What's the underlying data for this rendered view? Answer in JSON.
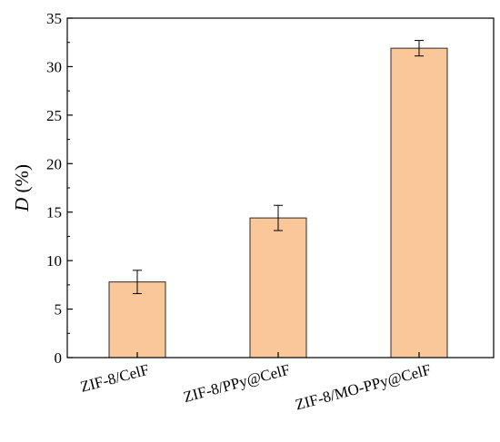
{
  "chart_data": {
    "type": "bar",
    "categories": [
      "ZIF-8/CelF",
      "ZIF-8/PPy@CelF",
      "ZIF-8/MO-PPy@CelF"
    ],
    "values": [
      7.8,
      14.4,
      31.9
    ],
    "errors": [
      1.2,
      1.3,
      0.8
    ],
    "title": "",
    "xlabel": "",
    "ylabel_italic": "D",
    "ylabel_rest": " (%)",
    "ylim": [
      0,
      35
    ],
    "yticks": [
      0,
      5,
      10,
      15,
      20,
      25,
      30,
      35
    ],
    "grid": false,
    "colors": {
      "bar_fill": "#FAC898",
      "bar_stroke": "#2b2b2b",
      "axis": "#000000"
    }
  }
}
